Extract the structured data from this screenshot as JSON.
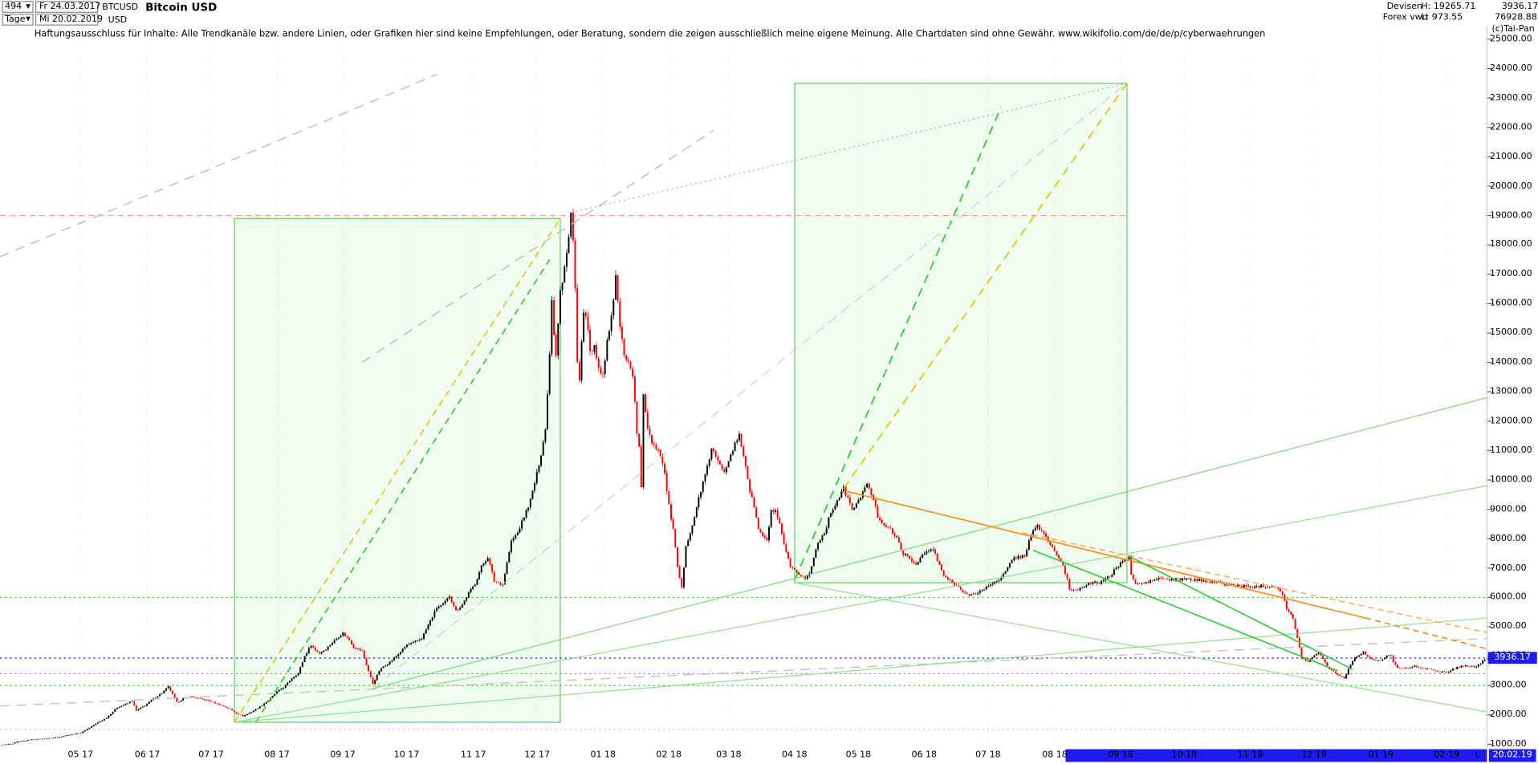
{
  "toolbar": {
    "bars_count": "494",
    "dropdown_icon": "▼",
    "start_date": "Fr 24.03.2017",
    "symbol": "BTCUSD",
    "title": "Bitcoin USD",
    "period": "Tage",
    "end_date": "Mi 20.02.2019",
    "currency": "USD"
  },
  "info": {
    "feed1": "Devisen",
    "feed2": "Forex vwd",
    "high": "H: 19265.71",
    "low": "L: 973.55",
    "last": "3936.17",
    "volume": "76928.88",
    "copyright": "(c)Tai-Pan"
  },
  "disclaimer": "Haftungsausschluss für Inhalte: Alle Trendkanäle bzw. andere Linien, oder Grafiken hier sind keine Empfehlungen, oder Beratung, sondern die zeigen ausschließlich meine eigene Meinung. Alle Chartdaten sind ohne Gewähr.  www.wikifolio.com/de/de/p/cyberwaehrungen",
  "price_badge": "3936.17",
  "x_axis": {
    "last_label": "L",
    "current_date": "20.02.19"
  },
  "y_axis": {
    "ticks": [
      "25000.00",
      "24000.00",
      "23000.00",
      "22000.00",
      "21000.00",
      "20000.00",
      "19000.00",
      "18000.00",
      "17000.00",
      "16000.00",
      "15000.00",
      "14000.00",
      "13000.00",
      "12000.00",
      "11000.00",
      "10000.00",
      "9000.00",
      "8000.00",
      "7000.00",
      "6000.00",
      "5000.00",
      "4000.00",
      "3000.00",
      "2000.00",
      "1000.00"
    ]
  },
  "chart_data": {
    "type": "candlestick",
    "title": "Bitcoin USD",
    "x_unit": "day index from 24.03.2017 to 20.02.2019",
    "x_range": [
      0,
      698
    ],
    "y_range": [
      1000,
      25000
    ],
    "last_close": 3936.17,
    "period_high": 19265.71,
    "period_low": 973.55,
    "noise": 0.015,
    "wick": 0.022,
    "colors": {
      "up": "#000000",
      "down": "#ff0000",
      "accent_blue": "#1c1cf0"
    },
    "months": [
      {
        "label": "05 17",
        "d": 38
      },
      {
        "label": "06 17",
        "d": 69
      },
      {
        "label": "07 17",
        "d": 99
      },
      {
        "label": "08 17",
        "d": 130
      },
      {
        "label": "09 17",
        "d": 161
      },
      {
        "label": "10 17",
        "d": 191
      },
      {
        "label": "11 17",
        "d": 222
      },
      {
        "label": "12 17",
        "d": 252
      },
      {
        "label": "01 18",
        "d": 283
      },
      {
        "label": "02 18",
        "d": 314
      },
      {
        "label": "03 18",
        "d": 342
      },
      {
        "label": "04 18",
        "d": 373
      },
      {
        "label": "05 18",
        "d": 403
      },
      {
        "label": "06 18",
        "d": 434
      },
      {
        "label": "07 18",
        "d": 464
      },
      {
        "label": "08 18",
        "d": 495
      },
      {
        "label": "09 18",
        "d": 526
      },
      {
        "label": "10 18",
        "d": 556
      },
      {
        "label": "11 18",
        "d": 587
      },
      {
        "label": "12 18",
        "d": 617
      },
      {
        "label": "01 19",
        "d": 648
      },
      {
        "label": "02 19",
        "d": 679
      }
    ],
    "visible_bar": {
      "d1": 500,
      "d2": 698
    },
    "boxes": [
      {
        "d1": 110,
        "d2": 263,
        "p1": 1750,
        "p2": 18900,
        "stroke": "#63d063",
        "fill": "rgba(140,230,140,0.13)"
      },
      {
        "d1": 373,
        "d2": 529,
        "p1": 6500,
        "p2": 23500,
        "stroke": "#63d063",
        "fill": "rgba(140,230,140,0.13)"
      }
    ],
    "levels": [
      {
        "price": 19000,
        "color": "#ff9494",
        "dash": "6,4",
        "d1": 0,
        "d2": 529,
        "w": 1
      },
      {
        "price": 6000,
        "color": "#3ecc3e",
        "dash": "2,3",
        "d1": 0,
        "d2": 698,
        "w": 1
      },
      {
        "price": 3936.17,
        "color": "#2222ff",
        "dash": "2,3",
        "d1": 0,
        "d2": 698,
        "w": 1
      },
      {
        "price": 3400,
        "color": "#3ecc3e",
        "dash": "2,3",
        "d1": 0,
        "d2": 698,
        "w": 1
      },
      {
        "price": 3000,
        "color": "#3ecc3e",
        "dash": "2,3",
        "d1": 0,
        "d2": 698,
        "w": 1
      },
      {
        "price": 1500,
        "color": "#c8c8c8",
        "dash": "2,3",
        "d1": 0,
        "d2": 698,
        "w": 1
      }
    ],
    "trendlines": [
      {
        "d": [
          110,
          263
        ],
        "p": [
          1750,
          18900
        ],
        "color": "#d8cc00",
        "dash": "7,5",
        "w": 1.3
      },
      {
        "d": [
          120,
          258
        ],
        "p": [
          1750,
          17500
        ],
        "color": "#22cc22",
        "dash": "7,5",
        "w": 1.3
      },
      {
        "d": [
          373,
          470
        ],
        "p": [
          6600,
          22700
        ],
        "color": "#22cc22",
        "dash": "9,6",
        "w": 1.4
      },
      {
        "d": [
          396,
          529
        ],
        "p": [
          9700,
          23500
        ],
        "color": "#d8cc00",
        "dash": "9,6",
        "w": 1.4
      },
      {
        "d": [
          0,
          205
        ],
        "p": [
          17600,
          23800
        ],
        "color": "#bdbdbd",
        "dash": "10,7",
        "w": 1.2
      },
      {
        "d": [
          170,
          335
        ],
        "p": [
          14000,
          21900
        ],
        "color": "#bdbdbd",
        "dash": "10,7",
        "w": 1.2
      },
      {
        "d": [
          0,
          698
        ],
        "p": [
          2300,
          4600
        ],
        "color": "#c4c4c4",
        "dash": "10,7",
        "w": 1.2
      },
      {
        "d": [
          175,
          529
        ],
        "p": [
          2900,
          23500
        ],
        "color": "#cfcfcf",
        "dash": "10,7",
        "w": 1
      },
      {
        "d": [
          268,
          529
        ],
        "p": [
          19100,
          23500
        ],
        "color": "#b5b5b5",
        "dash": "2,3",
        "w": 1
      },
      {
        "d": [
          175,
          698
        ],
        "p": [
          2900,
          12800
        ],
        "color": "#84dc84",
        "dash": "",
        "w": 1.1
      },
      {
        "d": [
          110,
          698
        ],
        "p": [
          1750,
          9800
        ],
        "color": "#8fe08f",
        "dash": "",
        "w": 1
      },
      {
        "d": [
          110,
          698
        ],
        "p": [
          1750,
          5300
        ],
        "color": "#8fe08f",
        "dash": "",
        "w": 1
      },
      {
        "d": [
          373,
          698
        ],
        "p": [
          6500,
          2100
        ],
        "color": "#8fe08f",
        "dash": "",
        "w": 1
      },
      {
        "d": [
          398,
          641
        ],
        "p": [
          9600,
          5300
        ],
        "color": "#ff8c1a",
        "dash": "",
        "w": 1.4
      },
      {
        "d": [
          641,
          698
        ],
        "p": [
          5300,
          4250
        ],
        "color": "#ff8c1a",
        "dash": "6,4",
        "w": 1.4
      },
      {
        "d": [
          480,
          698
        ],
        "p": [
          8200,
          4800
        ],
        "color": "#ff9a33",
        "dash": "6,4",
        "w": 1
      },
      {
        "d": [
          485,
          628
        ],
        "p": [
          7600,
          3500
        ],
        "color": "#2fcc2f",
        "dash": "",
        "w": 1.3
      },
      {
        "d": [
          530,
          635
        ],
        "p": [
          7400,
          3550
        ],
        "color": "#2fcc2f",
        "dash": "",
        "w": 1.3
      }
    ],
    "anchors": [
      [
        0,
        975
      ],
      [
        6,
        1020
      ],
      [
        8,
        1085
      ],
      [
        14,
        1150
      ],
      [
        20,
        1190
      ],
      [
        26,
        1230
      ],
      [
        32,
        1310
      ],
      [
        38,
        1390
      ],
      [
        45,
        1700
      ],
      [
        50,
        1900
      ],
      [
        55,
        2250
      ],
      [
        60,
        2400
      ],
      [
        62,
        2480
      ],
      [
        64,
        2150
      ],
      [
        68,
        2320
      ],
      [
        72,
        2550
      ],
      [
        76,
        2750
      ],
      [
        79,
        2960
      ],
      [
        81,
        2700
      ],
      [
        83,
        2420
      ],
      [
        86,
        2550
      ],
      [
        90,
        2620
      ],
      [
        94,
        2550
      ],
      [
        98,
        2480
      ],
      [
        103,
        2350
      ],
      [
        108,
        2200
      ],
      [
        111,
        2050
      ],
      [
        114,
        1960
      ],
      [
        118,
        2100
      ],
      [
        122,
        2280
      ],
      [
        126,
        2500
      ],
      [
        130,
        2780
      ],
      [
        134,
        3000
      ],
      [
        137,
        3250
      ],
      [
        140,
        3420
      ],
      [
        143,
        4000
      ],
      [
        146,
        4380
      ],
      [
        148,
        4200
      ],
      [
        150,
        4100
      ],
      [
        153,
        4250
      ],
      [
        155,
        4390
      ],
      [
        158,
        4600
      ],
      [
        161,
        4780
      ],
      [
        164,
        4550
      ],
      [
        166,
        4300
      ],
      [
        170,
        4180
      ],
      [
        172,
        3700
      ],
      [
        175,
        3060
      ],
      [
        178,
        3500
      ],
      [
        180,
        3650
      ],
      [
        183,
        3800
      ],
      [
        185,
        3920
      ],
      [
        188,
        4150
      ],
      [
        191,
        4390
      ],
      [
        194,
        4450
      ],
      [
        198,
        4610
      ],
      [
        202,
        5200
      ],
      [
        205,
        5650
      ],
      [
        208,
        5750
      ],
      [
        211,
        6050
      ],
      [
        214,
        5550
      ],
      [
        217,
        5750
      ],
      [
        220,
        6150
      ],
      [
        223,
        6470
      ],
      [
        226,
        7050
      ],
      [
        229,
        7380
      ],
      [
        232,
        6550
      ],
      [
        236,
        6450
      ],
      [
        240,
        7900
      ],
      [
        243,
        8200
      ],
      [
        246,
        8750
      ],
      [
        249,
        9300
      ],
      [
        252,
        10200
      ],
      [
        254,
        10900
      ],
      [
        256,
        11700
      ],
      [
        258,
        14300
      ],
      [
        259,
        16200
      ],
      [
        260,
        15000
      ],
      [
        261,
        14300
      ],
      [
        263,
        16450
      ],
      [
        264,
        16700
      ],
      [
        266,
        17700
      ],
      [
        268,
        19100
      ],
      [
        269,
        18100
      ],
      [
        270,
        16500
      ],
      [
        271,
        14000
      ],
      [
        272,
        13300
      ],
      [
        273,
        14600
      ],
      [
        274,
        15800
      ],
      [
        276,
        15100
      ],
      [
        277,
        14300
      ],
      [
        279,
        14500
      ],
      [
        280,
        14100
      ],
      [
        281,
        13900
      ],
      [
        283,
        13500
      ],
      [
        285,
        14800
      ],
      [
        286,
        15000
      ],
      [
        288,
        16200
      ],
      [
        289,
        16900
      ],
      [
        291,
        15200
      ],
      [
        293,
        14300
      ],
      [
        295,
        14000
      ],
      [
        297,
        13600
      ],
      [
        299,
        11600
      ],
      [
        300,
        11100
      ],
      [
        301,
        9700
      ],
      [
        302,
        12900
      ],
      [
        304,
        11800
      ],
      [
        306,
        11300
      ],
      [
        308,
        11100
      ],
      [
        310,
        10900
      ],
      [
        312,
        10200
      ],
      [
        314,
        9100
      ],
      [
        316,
        8300
      ],
      [
        318,
        7000
      ],
      [
        320,
        6300
      ],
      [
        322,
        7800
      ],
      [
        324,
        8200
      ],
      [
        326,
        8700
      ],
      [
        328,
        9400
      ],
      [
        330,
        9900
      ],
      [
        332,
        10400
      ],
      [
        334,
        11100
      ],
      [
        337,
        10600
      ],
      [
        340,
        10300
      ],
      [
        343,
        10900
      ],
      [
        347,
        11500
      ],
      [
        350,
        10500
      ],
      [
        352,
        9600
      ],
      [
        354,
        9100
      ],
      [
        356,
        8300
      ],
      [
        358,
        8100
      ],
      [
        360,
        7900
      ],
      [
        362,
        8950
      ],
      [
        364,
        8900
      ],
      [
        366,
        8450
      ],
      [
        368,
        7800
      ],
      [
        371,
        7000
      ],
      [
        373,
        6900
      ],
      [
        376,
        6750
      ],
      [
        378,
        6650
      ],
      [
        380,
        6800
      ],
      [
        384,
        7900
      ],
      [
        387,
        8200
      ],
      [
        390,
        8900
      ],
      [
        393,
        9300
      ],
      [
        396,
        9700
      ],
      [
        398,
        9350
      ],
      [
        400,
        9000
      ],
      [
        403,
        9250
      ],
      [
        405,
        9650
      ],
      [
        407,
        9820
      ],
      [
        410,
        9350
      ],
      [
        412,
        8750
      ],
      [
        415,
        8500
      ],
      [
        418,
        8300
      ],
      [
        421,
        8000
      ],
      [
        424,
        7500
      ],
      [
        427,
        7300
      ],
      [
        430,
        7130
      ],
      [
        432,
        7350
      ],
      [
        434,
        7500
      ],
      [
        438,
        7650
      ],
      [
        440,
        7250
      ],
      [
        443,
        6750
      ],
      [
        446,
        6550
      ],
      [
        448,
        6450
      ],
      [
        451,
        6300
      ],
      [
        453,
        6150
      ],
      [
        455,
        6050
      ],
      [
        457,
        6100
      ],
      [
        461,
        6250
      ],
      [
        464,
        6380
      ],
      [
        467,
        6550
      ],
      [
        470,
        6650
      ],
      [
        473,
        7000
      ],
      [
        476,
        7350
      ],
      [
        481,
        7420
      ],
      [
        484,
        8150
      ],
      [
        487,
        8420
      ],
      [
        490,
        8180
      ],
      [
        492,
        7900
      ],
      [
        495,
        7600
      ],
      [
        497,
        7300
      ],
      [
        499,
        7050
      ],
      [
        501,
        6600
      ],
      [
        502,
        6300
      ],
      [
        504,
        6250
      ],
      [
        506,
        6280
      ],
      [
        510,
        6450
      ],
      [
        513,
        6480
      ],
      [
        516,
        6500
      ],
      [
        518,
        6600
      ],
      [
        521,
        6700
      ],
      [
        524,
        7000
      ],
      [
        526,
        7200
      ],
      [
        530,
        7350
      ],
      [
        531,
        6800
      ],
      [
        533,
        6450
      ],
      [
        538,
        6500
      ],
      [
        541,
        6580
      ],
      [
        544,
        6650
      ],
      [
        550,
        6590
      ],
      [
        556,
        6620
      ],
      [
        562,
        6590
      ],
      [
        568,
        6550
      ],
      [
        575,
        6450
      ],
      [
        581,
        6400
      ],
      [
        587,
        6350
      ],
      [
        593,
        6400
      ],
      [
        599,
        6370
      ],
      [
        601,
        6250
      ],
      [
        603,
        5900
      ],
      [
        604,
        5600
      ],
      [
        606,
        5400
      ],
      [
        607,
        5250
      ],
      [
        609,
        4600
      ],
      [
        611,
        3950
      ],
      [
        614,
        3820
      ],
      [
        616,
        3950
      ],
      [
        617,
        4050
      ],
      [
        619,
        4150
      ],
      [
        621,
        3900
      ],
      [
        623,
        3650
      ],
      [
        625,
        3520
      ],
      [
        627,
        3420
      ],
      [
        629,
        3330
      ],
      [
        631,
        3250
      ],
      [
        633,
        3550
      ],
      [
        635,
        3850
      ],
      [
        637,
        4000
      ],
      [
        640,
        4150
      ],
      [
        642,
        3980
      ],
      [
        644,
        3870
      ],
      [
        648,
        3850
      ],
      [
        650,
        3950
      ],
      [
        653,
        4050
      ],
      [
        654,
        3800
      ],
      [
        656,
        3630
      ],
      [
        660,
        3580
      ],
      [
        662,
        3620
      ],
      [
        665,
        3650
      ],
      [
        667,
        3600
      ],
      [
        670,
        3560
      ],
      [
        672,
        3520
      ],
      [
        675,
        3480
      ],
      [
        680,
        3450
      ],
      [
        682,
        3550
      ],
      [
        684,
        3620
      ],
      [
        686,
        3650
      ],
      [
        688,
        3680
      ],
      [
        690,
        3650
      ],
      [
        692,
        3620
      ],
      [
        694,
        3700
      ],
      [
        695,
        3750
      ],
      [
        697,
        3880
      ],
      [
        698,
        3936.17
      ]
    ]
  }
}
